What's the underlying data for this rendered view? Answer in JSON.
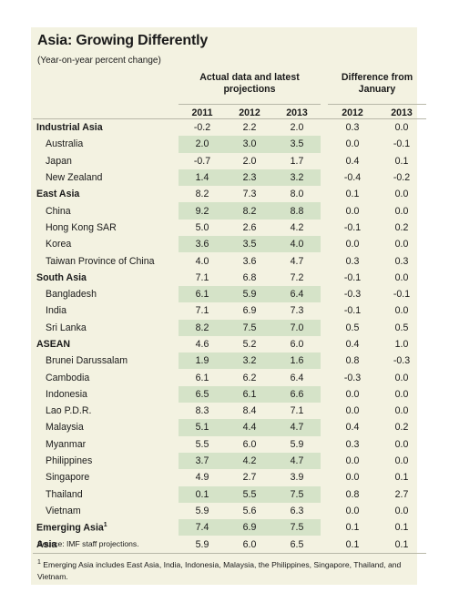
{
  "title": "Asia: Growing Differently",
  "subtitle": "(Year-on-year percent change)",
  "header": {
    "group_actual": "Actual data and latest projections",
    "group_diff": "Difference from January",
    "years": [
      "2011",
      "2012",
      "2013",
      "2012",
      "2013"
    ]
  },
  "rows": [
    {
      "label": "Industrial Asia",
      "v": [
        "-0.2",
        "2.2",
        "2.0",
        "0.3",
        "0.0"
      ]
    },
    {
      "label": "Australia",
      "v": [
        "2.0",
        "3.0",
        "3.5",
        "0.0",
        "-0.1"
      ]
    },
    {
      "label": "Japan",
      "v": [
        "-0.7",
        "2.0",
        "1.7",
        "0.4",
        "0.1"
      ]
    },
    {
      "label": "New Zealand",
      "v": [
        "1.4",
        "2.3",
        "3.2",
        "-0.4",
        "-0.2"
      ]
    },
    {
      "label": "East Asia",
      "v": [
        "8.2",
        "7.3",
        "8.0",
        "0.1",
        "0.0"
      ]
    },
    {
      "label": "China",
      "v": [
        "9.2",
        "8.2",
        "8.8",
        "0.0",
        "0.0"
      ]
    },
    {
      "label": "Hong Kong SAR",
      "v": [
        "5.0",
        "2.6",
        "4.2",
        "-0.1",
        "0.2"
      ]
    },
    {
      "label": "Korea",
      "v": [
        "3.6",
        "3.5",
        "4.0",
        "0.0",
        "0.0"
      ]
    },
    {
      "label": "Taiwan Province of China",
      "v": [
        "4.0",
        "3.6",
        "4.7",
        "0.3",
        "0.3"
      ]
    },
    {
      "label": "South Asia",
      "v": [
        "7.1",
        "6.8",
        "7.2",
        "-0.1",
        "0.0"
      ]
    },
    {
      "label": "Bangladesh",
      "v": [
        "6.1",
        "5.9",
        "6.4",
        "-0.3",
        "-0.1"
      ]
    },
    {
      "label": "India",
      "v": [
        "7.1",
        "6.9",
        "7.3",
        "-0.1",
        "0.0"
      ]
    },
    {
      "label": "Sri Lanka",
      "v": [
        "8.2",
        "7.5",
        "7.0",
        "0.5",
        "0.5"
      ]
    },
    {
      "label": "ASEAN",
      "v": [
        "4.6",
        "5.2",
        "6.0",
        "0.4",
        "1.0"
      ]
    },
    {
      "label": "Brunei Darussalam",
      "v": [
        "1.9",
        "3.2",
        "1.6",
        "0.8",
        "-0.3"
      ]
    },
    {
      "label": "Cambodia",
      "v": [
        "6.1",
        "6.2",
        "6.4",
        "-0.3",
        "0.0"
      ]
    },
    {
      "label": "Indonesia",
      "v": [
        "6.5",
        "6.1",
        "6.6",
        "0.0",
        "0.0"
      ]
    },
    {
      "label": "Lao P.D.R.",
      "v": [
        "8.3",
        "8.4",
        "7.1",
        "0.0",
        "0.0"
      ]
    },
    {
      "label": "Malaysia",
      "v": [
        "5.1",
        "4.4",
        "4.7",
        "0.4",
        "0.2"
      ]
    },
    {
      "label": "Myanmar",
      "v": [
        "5.5",
        "6.0",
        "5.9",
        "0.3",
        "0.0"
      ]
    },
    {
      "label": "Philippines",
      "v": [
        "3.7",
        "4.2",
        "4.7",
        "0.0",
        "0.0"
      ]
    },
    {
      "label": "Singapore",
      "v": [
        "4.9",
        "2.7",
        "3.9",
        "0.0",
        "0.1"
      ]
    },
    {
      "label": "Thailand",
      "v": [
        "0.1",
        "5.5",
        "7.5",
        "0.8",
        "2.7"
      ]
    },
    {
      "label": "Vietnam",
      "v": [
        "5.9",
        "5.6",
        "6.3",
        "0.0",
        "0.0"
      ]
    },
    {
      "label": "Emerging Asia",
      "sup": "1",
      "v": [
        "7.4",
        "6.9",
        "7.5",
        "0.1",
        "0.1"
      ]
    },
    {
      "label": "Asia",
      "v": [
        "5.9",
        "6.0",
        "6.5",
        "0.1",
        "0.1"
      ]
    }
  ],
  "source": "Source: IMF staff projections.",
  "footnote": {
    "marker": "1",
    "text": "Emerging Asia includes East Asia, India, Indonesia, Malaysia, the Philippines, Singapore, Thailand, and Vietnam."
  },
  "colors": {
    "panel_bg": "#f3f2e1",
    "highlight": "#d5e3c8"
  }
}
